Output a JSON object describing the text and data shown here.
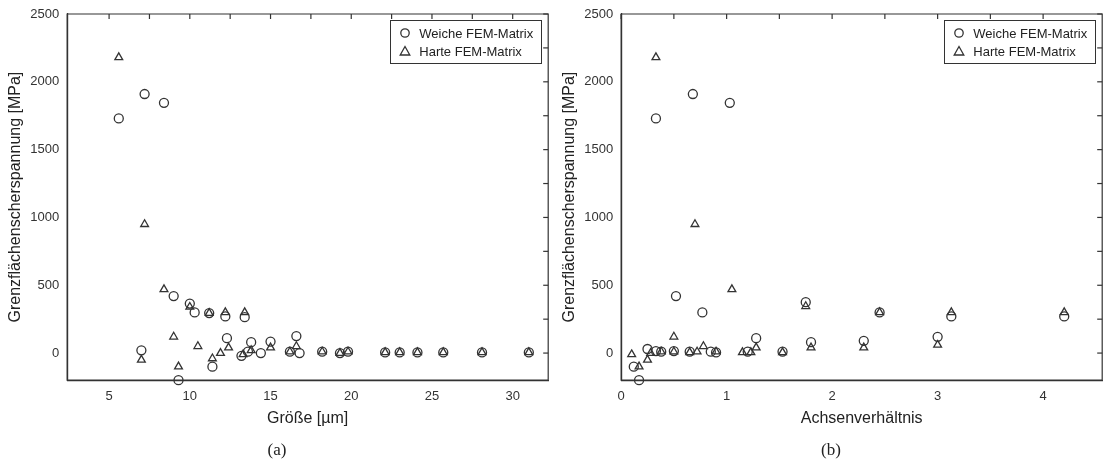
{
  "chart_data": [
    {
      "type": "scatter",
      "xlabel": "Größe [µm]",
      "ylabel": "Grenzflächenscherspannung [MPa]",
      "annotations": [
        "(a)"
      ],
      "legend": "top right",
      "grid": false,
      "xlim": [
        2.4,
        32.2
      ],
      "xticks": [
        5,
        {
          "value": 7.5,
          "label": null
        },
        10,
        {
          "value": 12.5,
          "label": null
        },
        15,
        {
          "value": 17.5,
          "label": null
        },
        20,
        {
          "value": 22.5,
          "label": null
        },
        25,
        {
          "value": 27.5,
          "label": null
        },
        30
      ],
      "ylim": [
        -200,
        2500
      ],
      "yticks": [
        0,
        {
          "value": 250,
          "label": null
        },
        500,
        {
          "value": 750,
          "label": null
        },
        1000,
        {
          "value": 1250,
          "label": null
        },
        1500,
        {
          "value": 1750,
          "label": null
        },
        2000,
        {
          "value": 2250,
          "label": null
        },
        2500
      ],
      "series": [
        {
          "name": "Weiche FEM-Matrix",
          "color": "#333333",
          "marker": "circle",
          "x": [
            5.6,
            7.2,
            8.4,
            7.0,
            9.0,
            10.0,
            10.3,
            11.2,
            12.2,
            13.4,
            12.3,
            11.4,
            9.3,
            13.2,
            13.8,
            14.4,
            15.0,
            16.6,
            16.8,
            16.2,
            13.6,
            18.2,
            19.3,
            19.8,
            22.1,
            23.0,
            24.1,
            25.7,
            28.1,
            31.0
          ],
          "values": [
            1730,
            1910,
            1845,
            20,
            420,
            365,
            300,
            295,
            270,
            265,
            110,
            -100,
            -200,
            -20,
            80,
            0,
            85,
            125,
            0,
            10,
            10,
            10,
            0,
            10,
            5,
            5,
            5,
            5,
            5,
            5
          ]
        },
        {
          "name": "Harte FEM-Matrix",
          "color": "#333333",
          "marker": "triangle",
          "x": [
            5.6,
            7.2,
            8.4,
            9.0,
            7.0,
            9.3,
            10.0,
            10.5,
            11.2,
            11.4,
            11.9,
            12.2,
            12.4,
            13.4,
            13.3,
            13.8,
            15.0,
            16.2,
            16.6,
            18.2,
            19.3,
            19.8,
            22.1,
            23.0,
            24.1,
            25.7,
            28.1,
            31.0
          ],
          "values": [
            2180,
            950,
            470,
            120,
            -50,
            -100,
            340,
            50,
            295,
            -40,
            0,
            300,
            40,
            300,
            -10,
            20,
            40,
            10,
            50,
            10,
            0,
            10,
            5,
            5,
            5,
            5,
            5,
            5
          ]
        }
      ]
    },
    {
      "type": "scatter",
      "xlabel": "Achsenverhältnis",
      "ylabel": "Grenzflächenscherspannung [MPa]",
      "annotations": [
        "(b)"
      ],
      "legend": "top right",
      "grid": false,
      "xlim": [
        0,
        4.56
      ],
      "xticks": [
        0,
        {
          "value": 0.5,
          "label": null
        },
        1,
        {
          "value": 1.5,
          "label": null
        },
        2,
        {
          "value": 2.5,
          "label": null
        },
        3,
        {
          "value": 3.5,
          "label": null
        },
        4
      ],
      "ylim": [
        -200,
        2500
      ],
      "yticks": [
        0,
        {
          "value": 250,
          "label": null
        },
        500,
        {
          "value": 750,
          "label": null
        },
        1000,
        {
          "value": 1250,
          "label": null
        },
        1500,
        {
          "value": 1750,
          "label": null
        },
        2000,
        {
          "value": 2250,
          "label": null
        },
        2500
      ],
      "series": [
        {
          "name": "Weiche FEM-Matrix",
          "color": "#333333",
          "marker": "circle",
          "x": [
            0.33,
            0.68,
            1.03,
            0.52,
            0.77,
            1.75,
            2.45,
            3.13,
            4.2,
            1.28,
            1.8,
            2.3,
            3.0,
            1.53,
            0.12,
            0.17,
            0.25,
            0.33,
            0.38,
            0.5,
            0.65,
            0.85,
            0.9,
            1.2
          ],
          "values": [
            1730,
            1910,
            1845,
            420,
            300,
            375,
            300,
            270,
            270,
            110,
            80,
            90,
            120,
            10,
            -100,
            -200,
            30,
            15,
            10,
            15,
            10,
            10,
            5,
            10
          ]
        },
        {
          "name": "Harte FEM-Matrix",
          "color": "#333333",
          "marker": "triangle",
          "x": [
            0.33,
            0.7,
            1.05,
            0.5,
            0.1,
            0.17,
            0.25,
            0.28,
            0.38,
            0.5,
            0.65,
            0.72,
            0.78,
            0.9,
            1.15,
            1.23,
            1.28,
            1.53,
            1.75,
            1.8,
            2.3,
            2.45,
            3.0,
            3.13,
            4.2
          ],
          "values": [
            2180,
            950,
            470,
            120,
            -10,
            -100,
            -50,
            0,
            10,
            10,
            5,
            10,
            50,
            10,
            5,
            5,
            40,
            5,
            345,
            40,
            40,
            300,
            60,
            300,
            300
          ]
        }
      ]
    }
  ]
}
